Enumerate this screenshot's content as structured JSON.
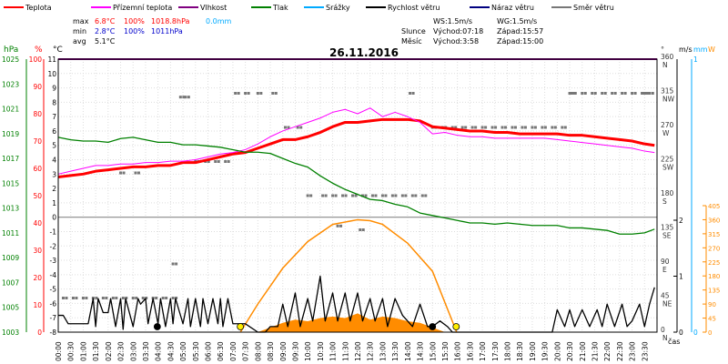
{
  "legend": [
    {
      "label": "Teplota",
      "color": "#ff0000"
    },
    {
      "label": "Přízemní teplota",
      "color": "#ff00ff"
    },
    {
      "label": "Vlhkost",
      "color": "#800080"
    },
    {
      "label": "Tlak",
      "color": "#008000"
    },
    {
      "label": "Srážky",
      "color": "#00aaff"
    },
    {
      "label": "Rychlost větru",
      "color": "#000000"
    },
    {
      "label": "Náraz větru",
      "color": "#000080"
    },
    {
      "label": "Směr větru",
      "color": "#777777"
    }
  ],
  "stats": {
    "rows": [
      {
        "label": "max",
        "temp": "6.8°C",
        "hum": "100%",
        "press": "1018.8hPa",
        "rain": "0.0mm"
      },
      {
        "label": "min",
        "temp": "2.8°C",
        "hum": "100%",
        "press": "1011hPa",
        "rain": ""
      },
      {
        "label": "avg",
        "temp": "5.1°C",
        "hum": "",
        "press": "",
        "rain": ""
      }
    ],
    "wind": {
      "ws": "WS:1.5m/s",
      "wg": "WG:1.5m/s"
    },
    "sun": {
      "label": "Slunce",
      "rise": "Východ:07:18",
      "set": "Západ:15:57"
    },
    "moon": {
      "label": "Měsíc",
      "rise": "Východ:3:58",
      "set": "Západ:15:00"
    }
  },
  "chart_data": {
    "type": "line",
    "title": "26.11.2016",
    "xlabel": "čas",
    "x_ticks": [
      "00:00",
      "00:30",
      "01:00",
      "01:30",
      "02:00",
      "02:30",
      "03:00",
      "03:30",
      "04:00",
      "04:30",
      "05:00",
      "05:30",
      "06:00",
      "06:30",
      "07:00",
      "07:30",
      "08:00",
      "08:30",
      "09:00",
      "09:30",
      "10:00",
      "10:30",
      "11:00",
      "11:30",
      "12:00",
      "12:30",
      "13:00",
      "13:30",
      "14:00",
      "14:30",
      "15:00",
      "15:30",
      "16:00",
      "16:30",
      "17:00",
      "17:30",
      "18:00",
      "18:30",
      "19:00",
      "19:30",
      "20:00",
      "20:30",
      "21:00",
      "21:30",
      "22:00",
      "22:30",
      "23:00",
      "23:30"
    ],
    "axes": {
      "hpa": {
        "label": "hPa",
        "color": "#008000",
        "ticks": [
          "1003",
          "1005",
          "1007",
          "1009",
          "1011",
          "1013",
          "1015",
          "1017",
          "1019",
          "1021",
          "1023",
          "1025"
        ],
        "range": [
          1003,
          1025
        ]
      },
      "pct": {
        "label": "%",
        "color": "#ff0000",
        "ticks": [
          "0",
          "10",
          "20",
          "30",
          "40",
          "50",
          "60",
          "70",
          "80",
          "90",
          "100"
        ],
        "range": [
          0,
          100
        ]
      },
      "temp": {
        "label": "°C",
        "color": "#000000",
        "ticks": [
          "-8",
          "-7",
          "-6",
          "-5",
          "-4",
          "-3",
          "-2",
          "-1",
          "0",
          "1",
          "2",
          "3",
          "4",
          "5",
          "6",
          "7",
          "8",
          "9",
          "10",
          "11"
        ],
        "range": [
          -8,
          11
        ]
      },
      "dir": {
        "label": "°",
        "color": "#333333",
        "ticks": [
          {
            "v": "0",
            "c": "N"
          },
          {
            "v": "45",
            "c": "NE"
          },
          {
            "v": "90",
            "c": "E"
          },
          {
            "v": "135",
            "c": "SE"
          },
          {
            "v": "180",
            "c": "S"
          },
          {
            "v": "225",
            "c": "SW"
          },
          {
            "v": "270",
            "c": "W"
          },
          {
            "v": "315",
            "c": "NW"
          },
          {
            "v": "360",
            "c": "N"
          }
        ],
        "range": [
          0,
          360
        ]
      },
      "ms": {
        "label": "m/s",
        "color": "#000000",
        "ticks": [
          "0",
          "1",
          "2"
        ]
      },
      "mm": {
        "label": "mm",
        "color": "#00aaff",
        "ticks": [
          "0",
          "1"
        ]
      },
      "w": {
        "label": "W",
        "color": "#ff8c00",
        "ticks": [
          "0",
          "45",
          "90",
          "135",
          "180",
          "225",
          "270",
          "315",
          "360",
          "405"
        ],
        "range": [
          0,
          405
        ]
      }
    },
    "series": [
      {
        "name": "Teplota",
        "axis": "temp",
        "color": "#ff0000",
        "x": [
          0,
          0.5,
          1,
          1.5,
          2,
          2.5,
          3,
          3.5,
          4,
          4.5,
          5,
          5.5,
          6,
          6.5,
          7,
          7.5,
          8,
          8.5,
          9,
          9.5,
          10,
          10.5,
          11,
          11.5,
          12,
          12.5,
          13,
          13.5,
          14,
          14.5,
          15,
          15.5,
          16,
          16.5,
          17,
          17.5,
          18,
          18.5,
          19,
          19.5,
          20,
          20.5,
          21,
          21.5,
          22,
          22.5,
          23,
          23.5,
          23.9
        ],
        "y": [
          2.8,
          2.9,
          3.0,
          3.2,
          3.3,
          3.4,
          3.5,
          3.5,
          3.6,
          3.6,
          3.8,
          3.8,
          4.0,
          4.2,
          4.4,
          4.5,
          4.8,
          5.1,
          5.4,
          5.4,
          5.6,
          5.9,
          6.3,
          6.6,
          6.6,
          6.7,
          6.8,
          6.8,
          6.8,
          6.7,
          6.3,
          6.2,
          6.1,
          6.0,
          6.0,
          5.9,
          5.9,
          5.8,
          5.8,
          5.8,
          5.8,
          5.7,
          5.7,
          5.6,
          5.5,
          5.4,
          5.3,
          5.1,
          5.0
        ]
      },
      {
        "name": "Přízemní teplota",
        "axis": "temp",
        "color": "#ff00ff",
        "x": [
          0,
          0.5,
          1,
          1.5,
          2,
          2.5,
          3,
          3.5,
          4,
          4.5,
          5,
          5.5,
          6,
          6.5,
          7,
          7.5,
          8,
          8.5,
          9,
          9.5,
          10,
          10.5,
          11,
          11.5,
          12,
          12.5,
          13,
          13.5,
          14,
          14.5,
          15,
          15.5,
          16,
          16.5,
          17,
          17.5,
          18,
          18.5,
          19,
          19.5,
          20,
          20.5,
          21,
          21.5,
          22,
          22.5,
          23,
          23.5,
          23.9
        ],
        "y": [
          3.0,
          3.2,
          3.4,
          3.6,
          3.6,
          3.7,
          3.7,
          3.8,
          3.8,
          3.9,
          3.9,
          4.0,
          4.2,
          4.4,
          4.5,
          4.7,
          5.1,
          5.6,
          6.0,
          6.3,
          6.6,
          6.9,
          7.3,
          7.5,
          7.2,
          7.6,
          7.0,
          7.3,
          7.0,
          6.6,
          5.8,
          5.9,
          5.7,
          5.6,
          5.6,
          5.5,
          5.5,
          5.5,
          5.5,
          5.5,
          5.4,
          5.3,
          5.2,
          5.1,
          5.0,
          4.9,
          4.8,
          4.6,
          4.5
        ]
      },
      {
        "name": "Vlhkost",
        "axis": "pct",
        "color": "#800080",
        "x": [
          0,
          24
        ],
        "y": [
          100,
          100
        ]
      },
      {
        "name": "Tlak",
        "axis": "hpa",
        "color": "#008000",
        "x": [
          0,
          0.5,
          1,
          1.5,
          2,
          2.5,
          3,
          3.5,
          4,
          4.5,
          5,
          5.5,
          6,
          6.5,
          7,
          7.5,
          8,
          8.5,
          9,
          9.5,
          10,
          10.5,
          11,
          11.5,
          12,
          12.5,
          13,
          13.5,
          14,
          14.5,
          15,
          15.5,
          16,
          16.5,
          17,
          17.5,
          18,
          18.5,
          19,
          19.5,
          20,
          20.5,
          21,
          21.5,
          22,
          22.5,
          23,
          23.5,
          23.9
        ],
        "y": [
          1018.7,
          1018.5,
          1018.4,
          1018.4,
          1018.3,
          1018.6,
          1018.7,
          1018.5,
          1018.3,
          1018.3,
          1018.1,
          1018.1,
          1018.0,
          1017.9,
          1017.7,
          1017.5,
          1017.5,
          1017.4,
          1017.0,
          1016.6,
          1016.3,
          1015.6,
          1015.0,
          1014.5,
          1014.1,
          1013.7,
          1013.6,
          1013.3,
          1013.1,
          1012.6,
          1012.4,
          1012.2,
          1012.0,
          1011.8,
          1011.8,
          1011.7,
          1011.8,
          1011.7,
          1011.6,
          1011.6,
          1011.6,
          1011.4,
          1011.4,
          1011.3,
          1011.2,
          1010.9,
          1010.9,
          1011.0,
          1011.3
        ]
      },
      {
        "name": "Rychlost větru",
        "axis": "ms",
        "color": "#000000",
        "x": [
          0,
          0.2,
          0.4,
          0.8,
          1.2,
          1.4,
          1.5,
          1.6,
          1.8,
          2.0,
          2.1,
          2.3,
          2.5,
          2.6,
          2.7,
          3.0,
          3.2,
          3.3,
          3.5,
          3.6,
          3.8,
          4.0,
          4.1,
          4.3,
          4.5,
          4.6,
          4.7,
          5.0,
          5.2,
          5.3,
          5.5,
          5.7,
          5.8,
          6.0,
          6.2,
          6.4,
          6.5,
          6.6,
          6.8,
          7.0,
          7.5,
          8.0,
          8.3,
          8.5,
          8.8,
          9.0,
          9.2,
          9.5,
          9.7,
          10.0,
          10.2,
          10.5,
          10.7,
          11.0,
          11.2,
          11.5,
          11.7,
          12.0,
          12.2,
          12.5,
          12.7,
          13.0,
          13.2,
          13.5,
          13.8,
          14.0,
          14.2,
          14.5,
          14.8,
          15.0,
          15.3,
          15.6,
          15.8,
          16.0,
          16.5,
          17,
          18,
          19,
          19.8,
          20.0,
          20.3,
          20.5,
          20.7,
          21.0,
          21.3,
          21.6,
          21.8,
          22.0,
          22.3,
          22.6,
          22.8,
          23.0,
          23.3,
          23.5,
          23.7,
          23.9
        ],
        "y": [
          0.3,
          0.3,
          0.15,
          0.15,
          0.15,
          0.6,
          0.1,
          0.6,
          0.35,
          0.35,
          0.6,
          0.1,
          0.6,
          0.05,
          0.6,
          0.1,
          0.6,
          0.5,
          0.6,
          0.15,
          0.6,
          0.15,
          0.6,
          0.1,
          0.6,
          0.15,
          0.6,
          0.15,
          0.6,
          0.1,
          0.6,
          0.1,
          0.6,
          0.15,
          0.6,
          0.15,
          0.6,
          0.1,
          0.6,
          0.15,
          0.15,
          0,
          0,
          0.1,
          0.1,
          0.5,
          0.1,
          0.7,
          0.1,
          0.6,
          0.2,
          1.0,
          0.2,
          0.7,
          0.2,
          0.7,
          0.2,
          0.7,
          0.2,
          0.6,
          0.2,
          0.6,
          0.1,
          0.6,
          0.3,
          0.2,
          0.1,
          0.5,
          0.1,
          0.1,
          0.2,
          0.1,
          0,
          0,
          0,
          0,
          0,
          0,
          0,
          0.4,
          0.1,
          0.4,
          0.1,
          0.4,
          0.1,
          0.4,
          0.1,
          0.5,
          0.1,
          0.5,
          0.1,
          0.2,
          0.5,
          0.1,
          0.5,
          0.8
        ]
      },
      {
        "name": "Solar",
        "axis": "w",
        "color": "#ff8c00",
        "x": [
          7.3,
          8,
          9,
          10,
          11,
          12,
          12.5,
          13,
          14,
          15,
          15.97
        ],
        "y": [
          0,
          90,
          205,
          290,
          345,
          360,
          357,
          345,
          285,
          195,
          0
        ]
      },
      {
        "name": "Solar_fill",
        "axis": "w",
        "color": "#ff8c00",
        "x": [
          8,
          8.5,
          9,
          9.5,
          10,
          10.5,
          11,
          11.5,
          12,
          12.5,
          13,
          13.5,
          14,
          14.5,
          15,
          15.5
        ],
        "y": [
          0,
          15,
          30,
          40,
          35,
          45,
          50,
          45,
          60,
          40,
          50,
          45,
          35,
          30,
          15,
          0
        ]
      }
    ],
    "wind_dir_points": {
      "axis": "dir",
      "x": [
        0.2,
        0.6,
        1,
        1.4,
        1.8,
        2.2,
        2.6,
        3,
        3.4,
        3.8,
        4.2,
        4.6,
        4.9,
        5.1,
        5.5,
        5.9,
        6.3,
        6.7,
        7.1,
        7.5,
        8,
        8.6,
        9.1,
        9.6,
        10,
        10.6,
        11,
        11.4,
        11.8,
        12.2,
        12.6,
        13,
        13.4,
        13.8,
        14.2,
        14.6,
        15,
        15.4,
        15.8,
        16.2,
        16.6,
        17,
        17.4,
        17.8,
        18.2,
        18.6,
        19,
        19.4,
        19.8,
        20.2,
        20.6,
        21,
        21.4,
        21.8,
        22.2,
        22.6,
        23,
        23.4,
        23.7,
        4.6,
        3.1,
        2.5,
        11.2,
        12.1,
        14.1,
        20.5,
        23.5
      ],
      "y": [
        45,
        45,
        45,
        45,
        45,
        45,
        45,
        45,
        45,
        45,
        45,
        45,
        310,
        310,
        225,
        225,
        225,
        225,
        315,
        315,
        315,
        315,
        270,
        270,
        180,
        180,
        180,
        180,
        180,
        180,
        180,
        180,
        180,
        180,
        180,
        180,
        270,
        270,
        270,
        270,
        270,
        270,
        270,
        270,
        270,
        270,
        270,
        270,
        270,
        270,
        315,
        315,
        315,
        315,
        315,
        315,
        315,
        315,
        315,
        90,
        210,
        210,
        140,
        135,
        315,
        315,
        315
      ]
    },
    "markers": [
      {
        "kind": "moonrise",
        "x": 3.97,
        "color": "#000000"
      },
      {
        "kind": "sunrise",
        "x": 7.3,
        "color": "#ffee00"
      },
      {
        "kind": "moonset",
        "x": 15.0,
        "color": "#000000"
      },
      {
        "kind": "sunset",
        "x": 15.95,
        "color": "#ffee00"
      }
    ]
  }
}
